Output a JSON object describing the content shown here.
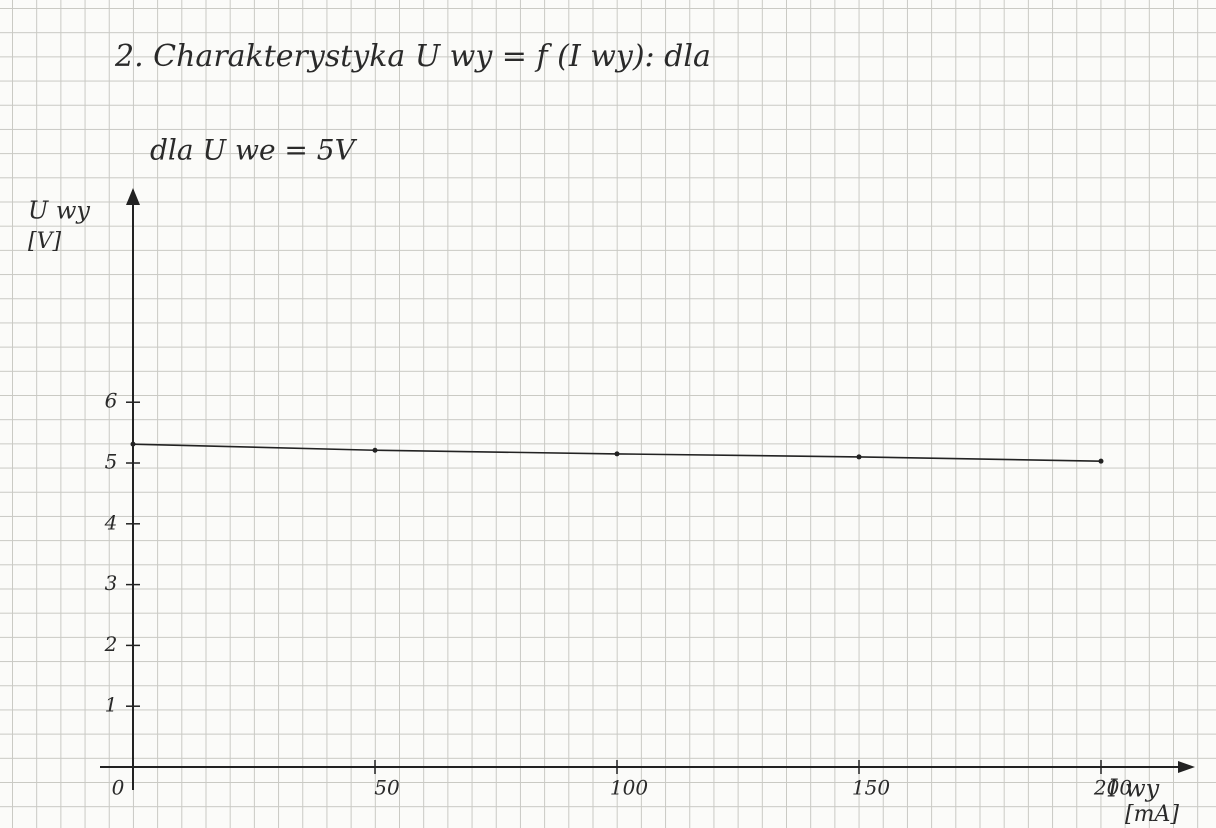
{
  "chart_data": {
    "type": "line",
    "title": "2. Charakterystyka U wy = f (I wy): dla",
    "subtitle": "dla U we = 5V",
    "y_label": "U wy",
    "y_unit": "[V]",
    "x_label": "I wy",
    "x_unit": "[mA]",
    "x": [
      0,
      50,
      100,
      150,
      200
    ],
    "series": [
      {
        "name": "U wy",
        "color": "#222222",
        "values": [
          5.31,
          5.21,
          5.15,
          5.1,
          5.03
        ]
      }
    ],
    "xlim": [
      0,
      215
    ],
    "ylim": [
      0,
      9.4
    ],
    "xticks": [
      0,
      50,
      100,
      150,
      200
    ],
    "yticks": [
      1,
      2,
      3,
      4,
      5,
      6
    ]
  }
}
